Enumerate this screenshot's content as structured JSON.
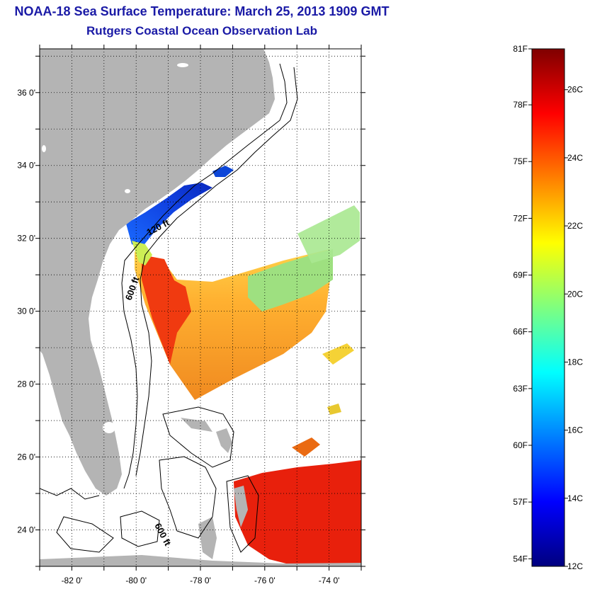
{
  "header": {
    "title": "NOAA-18 Sea Surface Temperature:  March 25, 2013 1909 GMT",
    "subtitle": "Rutgers Coastal Ocean Observation Lab"
  },
  "map": {
    "lat_ticks": [
      {
        "value": 36,
        "label": "36 0'"
      },
      {
        "value": 34,
        "label": "34 0'"
      },
      {
        "value": 32,
        "label": "32 0'"
      },
      {
        "value": 30,
        "label": "30 0'"
      },
      {
        "value": 28,
        "label": "28 0'"
      },
      {
        "value": 26,
        "label": "26 0'"
      },
      {
        "value": 24,
        "label": "24 0'"
      }
    ],
    "lon_ticks": [
      {
        "value": -82,
        "label": "-82 0'"
      },
      {
        "value": -80,
        "label": "-80 0'"
      },
      {
        "value": -78,
        "label": "-78 0'"
      },
      {
        "value": -76,
        "label": "-76 0'"
      },
      {
        "value": -74,
        "label": "-74 0'"
      }
    ],
    "lat_range": [
      23.0,
      37.2
    ],
    "lon_range": [
      -83.0,
      -73.0
    ],
    "land_color": "#b4b4b4",
    "contour_labels": {
      "shelf_120": "120 ft",
      "shelf_600_north": "600 ft",
      "shelf_600_south": "600 ft"
    }
  },
  "colorbar": {
    "fahrenheit": [
      "81F",
      "78F",
      "75F",
      "72F",
      "69F",
      "66F",
      "63F",
      "60F",
      "57F",
      "54F"
    ],
    "celsius": [
      "26C",
      "24C",
      "22C",
      "20C",
      "18C",
      "16C",
      "14C",
      "12C"
    ],
    "range_c": [
      12,
      27.2
    ],
    "colors": [
      "#00007f",
      "#0000ff",
      "#007fff",
      "#00ffff",
      "#7fff7f",
      "#ffff00",
      "#ff7f00",
      "#ff0000",
      "#7f0000"
    ]
  }
}
